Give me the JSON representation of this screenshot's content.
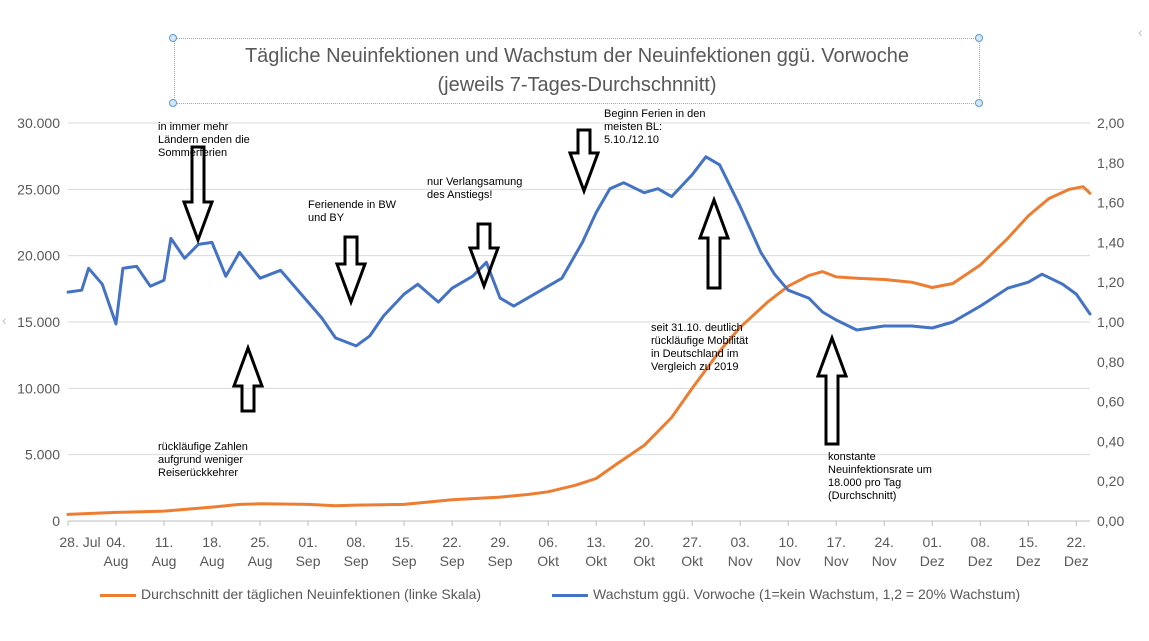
{
  "title": {
    "line1": "Tägliche Neuinfektionen und Wachstum der Neuinfektionen ggü. Vorwoche",
    "line2": "(jeweils 7-Tages-Durchschnnitt)"
  },
  "colors": {
    "cases": "#ed7d31",
    "growth": "#4472c4",
    "grid": "#d9d9d9",
    "axis_text": "#595959"
  },
  "legend": {
    "cases": "Durchschnitt der täglichen Neuinfektionen (linke Skala)",
    "growth": "Wachstum ggü. Vorwoche (1=kein Wachstum, 1,2 = 20% Wachstum)"
  },
  "annotations": [
    {
      "lines": [
        "in immer mehr",
        "Ländern enden die",
        "Sommerferien"
      ],
      "arrow": "down"
    },
    {
      "lines": [
        "Ferienende in BW",
        "und BY"
      ],
      "arrow": "down"
    },
    {
      "lines": [
        "nur Verlangsamung",
        "des Anstiegs!"
      ],
      "arrow": "down"
    },
    {
      "lines": [
        "Beginn Ferien in den",
        "meisten BL:",
        "5.10./12.10"
      ],
      "arrow": "down"
    },
    {
      "lines": [
        "seit 31.10. deutlich",
        "rückläufige Mobilität",
        "in Deutschland im",
        "Vergleich zu 2019"
      ],
      "arrow": "up"
    },
    {
      "lines": [
        "rückläufige Zahlen",
        "aufgrund weniger",
        "Reiserückkehrer"
      ],
      "arrow": "up"
    },
    {
      "lines": [
        "konstante",
        "Neuinfektionsrate um",
        "18.000 pro Tag",
        "(Durchschnitt)"
      ],
      "arrow": "up"
    }
  ],
  "chart_data": {
    "type": "line",
    "title": "Tägliche Neuinfektionen und Wachstum der Neuinfektionen ggü. Vorwoche (jeweils 7-Tages-Durchschnnitt)",
    "x": {
      "start": "2020-07-28",
      "end": "2020-12-24",
      "ticks": [
        {
          "date": "2020-07-28",
          "label": [
            "28. Jul",
            ""
          ]
        },
        {
          "date": "2020-08-04",
          "label": [
            "04.",
            "Aug"
          ]
        },
        {
          "date": "2020-08-11",
          "label": [
            "11.",
            "Aug"
          ]
        },
        {
          "date": "2020-08-18",
          "label": [
            "18.",
            "Aug"
          ]
        },
        {
          "date": "2020-08-25",
          "label": [
            "25.",
            "Aug"
          ]
        },
        {
          "date": "2020-09-01",
          "label": [
            "01.",
            "Sep"
          ]
        },
        {
          "date": "2020-09-08",
          "label": [
            "08.",
            "Sep"
          ]
        },
        {
          "date": "2020-09-15",
          "label": [
            "15.",
            "Sep"
          ]
        },
        {
          "date": "2020-09-22",
          "label": [
            "22.",
            "Sep"
          ]
        },
        {
          "date": "2020-09-29",
          "label": [
            "29.",
            "Sep"
          ]
        },
        {
          "date": "2020-10-06",
          "label": [
            "06.",
            "Okt"
          ]
        },
        {
          "date": "2020-10-13",
          "label": [
            "13.",
            "Okt"
          ]
        },
        {
          "date": "2020-10-20",
          "label": [
            "20.",
            "Okt"
          ]
        },
        {
          "date": "2020-10-27",
          "label": [
            "27.",
            "Okt"
          ]
        },
        {
          "date": "2020-11-03",
          "label": [
            "03.",
            "Nov"
          ]
        },
        {
          "date": "2020-11-10",
          "label": [
            "10.",
            "Nov"
          ]
        },
        {
          "date": "2020-11-17",
          "label": [
            "17.",
            "Nov"
          ]
        },
        {
          "date": "2020-11-24",
          "label": [
            "24.",
            "Nov"
          ]
        },
        {
          "date": "2020-12-01",
          "label": [
            "01.",
            "Dez"
          ]
        },
        {
          "date": "2020-12-08",
          "label": [
            "08.",
            "Dez"
          ]
        },
        {
          "date": "2020-12-15",
          "label": [
            "15.",
            "Dez"
          ]
        },
        {
          "date": "2020-12-22",
          "label": [
            "22.",
            "Dez"
          ]
        }
      ]
    },
    "y_left": {
      "range": [
        0,
        30000
      ],
      "ticks": [
        0,
        5000,
        10000,
        15000,
        20000,
        25000,
        30000
      ],
      "tick_labels": [
        "0",
        "5.000",
        "10.000",
        "15.000",
        "20.000",
        "25.000",
        "30.000"
      ]
    },
    "y_right": {
      "range": [
        0,
        2.0
      ],
      "ticks": [
        0,
        0.2,
        0.4,
        0.6,
        0.8,
        1.0,
        1.2,
        1.4,
        1.6,
        1.8,
        2.0
      ],
      "tick_labels": [
        "0,00",
        "0,20",
        "0,40",
        "0,60",
        "0,80",
        "1,00",
        "1,20",
        "1,40",
        "1,60",
        "1,80",
        "2,00"
      ]
    },
    "grid": true,
    "legend_position": "bottom",
    "series": [
      {
        "name": "Durchschnitt der täglichen Neuinfektionen (linke Skala)",
        "axis": "left",
        "points": [
          [
            "2020-07-28",
            500
          ],
          [
            "2020-08-04",
            650
          ],
          [
            "2020-08-11",
            750
          ],
          [
            "2020-08-18",
            1050
          ],
          [
            "2020-08-22",
            1250
          ],
          [
            "2020-08-25",
            1300
          ],
          [
            "2020-09-01",
            1250
          ],
          [
            "2020-09-05",
            1150
          ],
          [
            "2020-09-08",
            1200
          ],
          [
            "2020-09-15",
            1250
          ],
          [
            "2020-09-22",
            1600
          ],
          [
            "2020-09-29",
            1800
          ],
          [
            "2020-10-03",
            2000
          ],
          [
            "2020-10-06",
            2200
          ],
          [
            "2020-10-10",
            2700
          ],
          [
            "2020-10-13",
            3200
          ],
          [
            "2020-10-16",
            4300
          ],
          [
            "2020-10-20",
            5700
          ],
          [
            "2020-10-24",
            7800
          ],
          [
            "2020-10-27",
            10000
          ],
          [
            "2020-10-31",
            12800
          ],
          [
            "2020-11-03",
            14600
          ],
          [
            "2020-11-07",
            16500
          ],
          [
            "2020-11-10",
            17700
          ],
          [
            "2020-11-13",
            18500
          ],
          [
            "2020-11-15",
            18800
          ],
          [
            "2020-11-17",
            18400
          ],
          [
            "2020-11-20",
            18300
          ],
          [
            "2020-11-24",
            18200
          ],
          [
            "2020-11-28",
            18000
          ],
          [
            "2020-12-01",
            17600
          ],
          [
            "2020-12-04",
            17900
          ],
          [
            "2020-12-08",
            19300
          ],
          [
            "2020-12-12",
            21300
          ],
          [
            "2020-12-15",
            23000
          ],
          [
            "2020-12-18",
            24300
          ],
          [
            "2020-12-21",
            25000
          ],
          [
            "2020-12-23",
            25200
          ],
          [
            "2020-12-24",
            24700
          ]
        ]
      },
      {
        "name": "Wachstum ggü. Vorwoche (1=kein Wachstum, 1,2 = 20% Wachstum)",
        "axis": "right",
        "points": [
          [
            "2020-07-28",
            1.15
          ],
          [
            "2020-07-30",
            1.16
          ],
          [
            "2020-07-31",
            1.27
          ],
          [
            "2020-08-02",
            1.19
          ],
          [
            "2020-08-04",
            0.99
          ],
          [
            "2020-08-05",
            1.27
          ],
          [
            "2020-08-07",
            1.28
          ],
          [
            "2020-08-09",
            1.18
          ],
          [
            "2020-08-11",
            1.21
          ],
          [
            "2020-08-12",
            1.42
          ],
          [
            "2020-08-14",
            1.32
          ],
          [
            "2020-08-16",
            1.39
          ],
          [
            "2020-08-18",
            1.4
          ],
          [
            "2020-08-20",
            1.23
          ],
          [
            "2020-08-22",
            1.35
          ],
          [
            "2020-08-25",
            1.22
          ],
          [
            "2020-08-28",
            1.26
          ],
          [
            "2020-09-01",
            1.1
          ],
          [
            "2020-09-03",
            1.02
          ],
          [
            "2020-09-05",
            0.92
          ],
          [
            "2020-09-08",
            0.88
          ],
          [
            "2020-09-10",
            0.93
          ],
          [
            "2020-09-12",
            1.03
          ],
          [
            "2020-09-15",
            1.14
          ],
          [
            "2020-09-17",
            1.19
          ],
          [
            "2020-09-20",
            1.1
          ],
          [
            "2020-09-22",
            1.17
          ],
          [
            "2020-09-25",
            1.23
          ],
          [
            "2020-09-27",
            1.3
          ],
          [
            "2020-09-29",
            1.12
          ],
          [
            "2020-10-01",
            1.08
          ],
          [
            "2020-10-03",
            1.12
          ],
          [
            "2020-10-06",
            1.18
          ],
          [
            "2020-10-08",
            1.22
          ],
          [
            "2020-10-11",
            1.4
          ],
          [
            "2020-10-13",
            1.55
          ],
          [
            "2020-10-15",
            1.67
          ],
          [
            "2020-10-17",
            1.7
          ],
          [
            "2020-10-20",
            1.65
          ],
          [
            "2020-10-22",
            1.67
          ],
          [
            "2020-10-24",
            1.63
          ],
          [
            "2020-10-27",
            1.74
          ],
          [
            "2020-10-29",
            1.83
          ],
          [
            "2020-10-31",
            1.79
          ],
          [
            "2020-11-03",
            1.58
          ],
          [
            "2020-11-06",
            1.35
          ],
          [
            "2020-11-08",
            1.24
          ],
          [
            "2020-11-10",
            1.16
          ],
          [
            "2020-11-13",
            1.12
          ],
          [
            "2020-11-15",
            1.05
          ],
          [
            "2020-11-17",
            1.01
          ],
          [
            "2020-11-20",
            0.96
          ],
          [
            "2020-11-24",
            0.98
          ],
          [
            "2020-11-28",
            0.98
          ],
          [
            "2020-12-01",
            0.97
          ],
          [
            "2020-12-04",
            1.0
          ],
          [
            "2020-12-08",
            1.08
          ],
          [
            "2020-12-12",
            1.17
          ],
          [
            "2020-12-15",
            1.2
          ],
          [
            "2020-12-17",
            1.24
          ],
          [
            "2020-12-20",
            1.19
          ],
          [
            "2020-12-22",
            1.14
          ],
          [
            "2020-12-24",
            1.04
          ]
        ]
      }
    ]
  }
}
